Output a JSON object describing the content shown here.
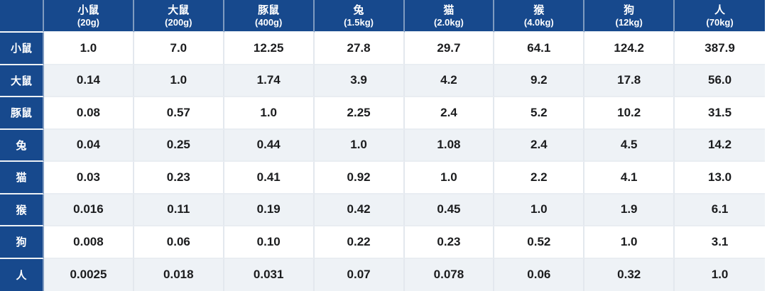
{
  "table": {
    "corner": "",
    "columns": [
      {
        "name": "小鼠",
        "weight": "(20g)"
      },
      {
        "name": "大鼠",
        "weight": "(200g)"
      },
      {
        "name": "豚鼠",
        "weight": "(400g)"
      },
      {
        "name": "兔",
        "weight": "(1.5kg)"
      },
      {
        "name": "猫",
        "weight": "(2.0kg)"
      },
      {
        "name": "猴",
        "weight": "(4.0kg)"
      },
      {
        "name": "狗",
        "weight": "(12kg)"
      },
      {
        "name": "人",
        "weight": "(70kg)"
      }
    ],
    "rows": [
      {
        "label": "小鼠",
        "values": [
          "1.0",
          "7.0",
          "12.25",
          "27.8",
          "29.7",
          "64.1",
          "124.2",
          "387.9"
        ]
      },
      {
        "label": "大鼠",
        "values": [
          "0.14",
          "1.0",
          "1.74",
          "3.9",
          "4.2",
          "9.2",
          "17.8",
          "56.0"
        ]
      },
      {
        "label": "豚鼠",
        "values": [
          "0.08",
          "0.57",
          "1.0",
          "2.25",
          "2.4",
          "5.2",
          "10.2",
          "31.5"
        ]
      },
      {
        "label": "兔",
        "values": [
          "0.04",
          "0.25",
          "0.44",
          "1.0",
          "1.08",
          "2.4",
          "4.5",
          "14.2"
        ]
      },
      {
        "label": "猫",
        "values": [
          "0.03",
          "0.23",
          "0.41",
          "0.92",
          "1.0",
          "2.2",
          "4.1",
          "13.0"
        ]
      },
      {
        "label": "猴",
        "values": [
          "0.016",
          "0.11",
          "0.19",
          "0.42",
          "0.45",
          "1.0",
          "1.9",
          "6.1"
        ]
      },
      {
        "label": "狗",
        "values": [
          "0.008",
          "0.06",
          "0.10",
          "0.22",
          "0.23",
          "0.52",
          "1.0",
          "3.1"
        ]
      },
      {
        "label": "人",
        "values": [
          "0.0025",
          "0.018",
          "0.031",
          "0.07",
          "0.078",
          "0.06",
          "0.32",
          "1.0"
        ]
      }
    ]
  },
  "colors": {
    "header_blue": "#17498d",
    "stripe_light": "#eef2f6",
    "grid_line": "#e3e8ee",
    "text_dark": "#1b1c1e",
    "text_light": "#ffffff"
  },
  "chart_data": {
    "type": "table",
    "title": "",
    "columns": [
      "小鼠 (20g)",
      "大鼠 (200g)",
      "豚鼠 (400g)",
      "兔 (1.5kg)",
      "猫 (2.0kg)",
      "猴 (4.0kg)",
      "狗 (12kg)",
      "人 (70kg)"
    ],
    "row_labels": [
      "小鼠",
      "大鼠",
      "豚鼠",
      "兔",
      "猫",
      "猴",
      "狗",
      "人"
    ],
    "values": [
      [
        1.0,
        7.0,
        12.25,
        27.8,
        29.7,
        64.1,
        124.2,
        387.9
      ],
      [
        0.14,
        1.0,
        1.74,
        3.9,
        4.2,
        9.2,
        17.8,
        56.0
      ],
      [
        0.08,
        0.57,
        1.0,
        2.25,
        2.4,
        5.2,
        10.2,
        31.5
      ],
      [
        0.04,
        0.25,
        0.44,
        1.0,
        1.08,
        2.4,
        4.5,
        14.2
      ],
      [
        0.03,
        0.23,
        0.41,
        0.92,
        1.0,
        2.2,
        4.1,
        13.0
      ],
      [
        0.016,
        0.11,
        0.19,
        0.42,
        0.45,
        1.0,
        1.9,
        6.1
      ],
      [
        0.008,
        0.06,
        0.1,
        0.22,
        0.23,
        0.52,
        1.0,
        3.1
      ],
      [
        0.0025,
        0.018,
        0.031,
        0.07,
        0.078,
        0.06,
        0.32,
        1.0
      ]
    ]
  }
}
